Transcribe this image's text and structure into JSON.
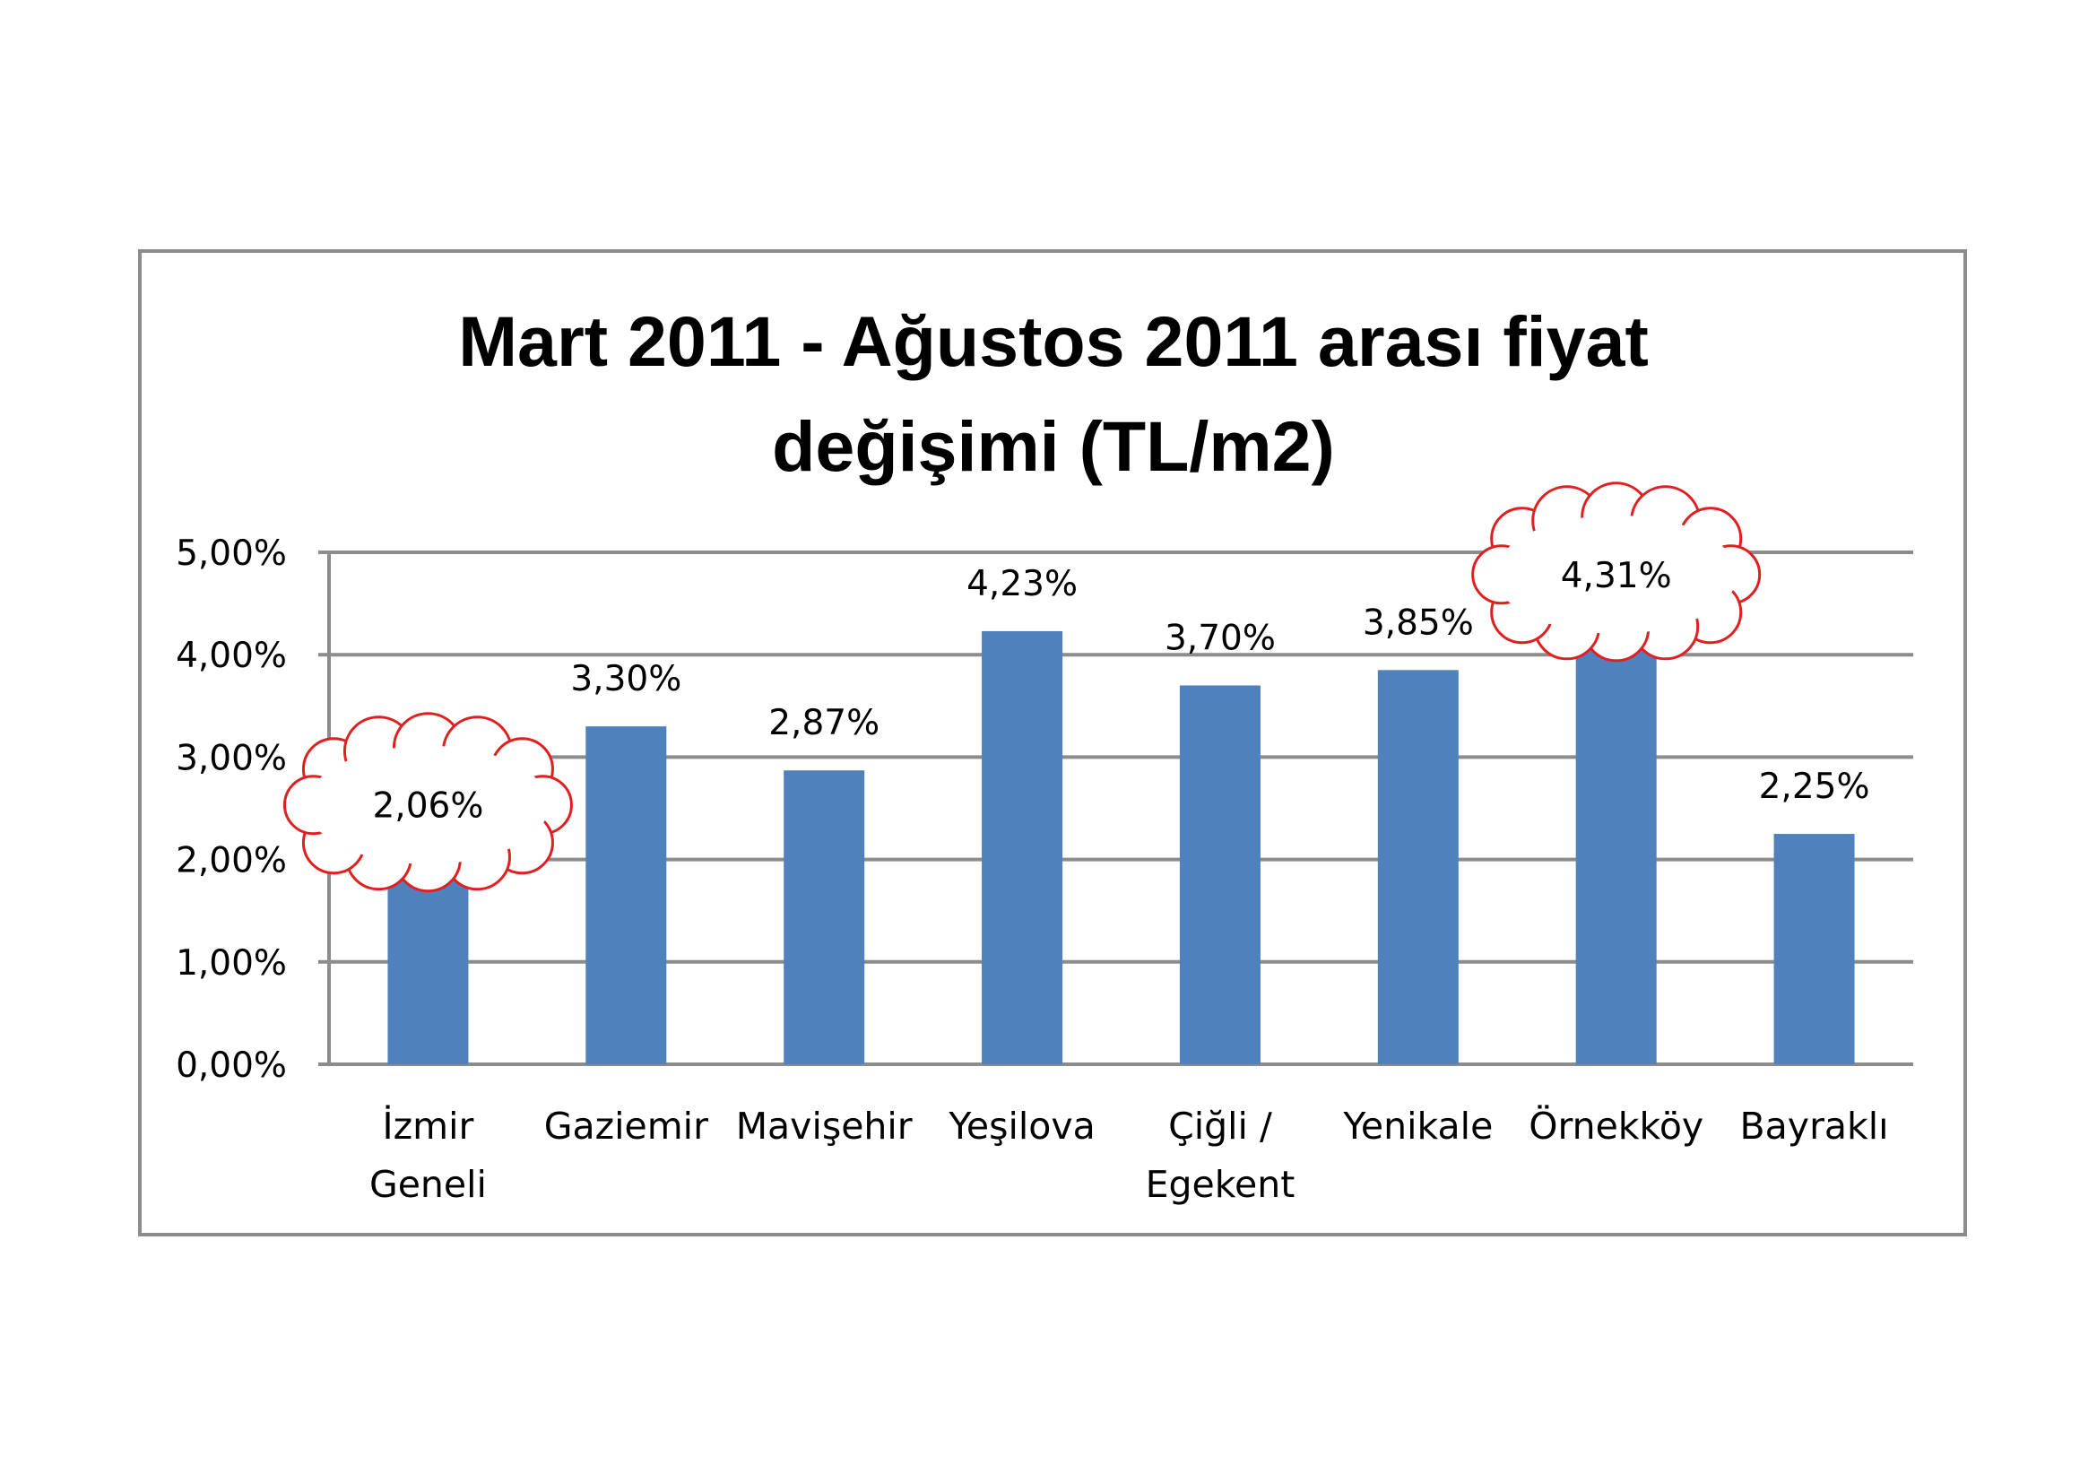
{
  "chart_data": {
    "type": "bar",
    "title": [
      "Mart 2011 - Ağustos 2011 arası fiyat",
      "değişimi (TL/m2)"
    ],
    "categories": [
      [
        "İzmir",
        "Geneli"
      ],
      [
        "Gaziemir"
      ],
      [
        "Mavişehir"
      ],
      [
        "Yeşilova"
      ],
      [
        "Çiğli /",
        "Egekent"
      ],
      [
        "Yenikale"
      ],
      [
        "Örnekköy"
      ],
      [
        "Bayraklı"
      ]
    ],
    "values": [
      2.06,
      3.3,
      2.87,
      4.23,
      3.7,
      3.85,
      4.31,
      2.25
    ],
    "data_labels": [
      "2,06%",
      "3,30%",
      "2,87%",
      "4,23%",
      "3,70%",
      "3,85%",
      "4,31%",
      "2,25%"
    ],
    "ylim": [
      0,
      5
    ],
    "yticks": [
      0,
      1,
      2,
      3,
      4,
      5
    ],
    "ytick_labels": [
      "0,00%",
      "1,00%",
      "2,00%",
      "3,00%",
      "4,00%",
      "5,00%"
    ],
    "grid": true,
    "legend": "none",
    "highlighted": [
      0,
      6
    ],
    "colors": {
      "bar": "#4f81bd",
      "grid": "#8c8c8c",
      "highlight": "#e02020",
      "frame": "#8c8c8c"
    }
  }
}
